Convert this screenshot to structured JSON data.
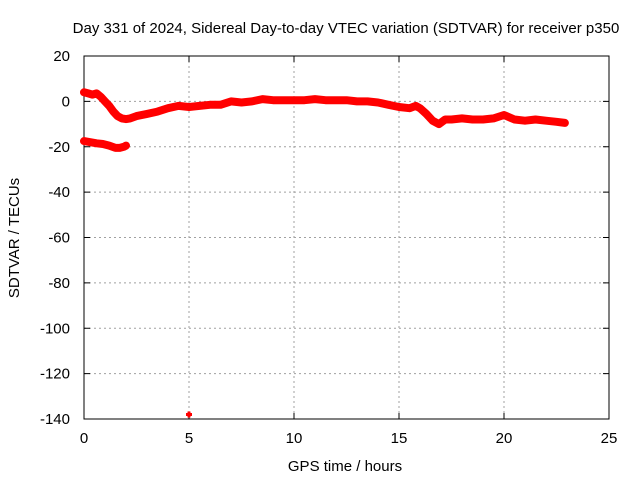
{
  "chart_data": {
    "type": "scatter",
    "title": "Day 331 of 2024, Sidereal Day-to-day VTEC variation (SDTVAR) for receiver p350",
    "xlabel": "GPS time / hours",
    "ylabel": "SDTVAR / TECUs",
    "xlim": [
      0,
      25
    ],
    "ylim": [
      -140,
      20
    ],
    "xticks": [
      0,
      5,
      10,
      15,
      20,
      25
    ],
    "yticks": [
      -140,
      -120,
      -100,
      -80,
      -60,
      -40,
      -20,
      0,
      20
    ],
    "grid": true,
    "marker_color": "#ff0000",
    "series": [
      {
        "name": "track-main",
        "x": [
          0.0,
          0.2,
          0.4,
          0.6,
          0.8,
          1.0,
          1.2,
          1.4,
          1.6,
          1.8,
          2.0,
          2.2,
          2.5,
          3.0,
          3.5,
          4.0,
          4.5,
          5.0,
          5.5,
          6.0,
          6.5,
          7.0,
          7.5,
          8.0,
          8.5,
          9.0,
          9.5,
          10.0,
          10.5,
          11.0,
          11.5,
          12.0,
          12.5,
          13.0,
          13.5,
          14.0,
          14.5,
          15.0,
          15.5,
          15.8,
          16.0,
          16.3,
          16.6,
          16.9,
          17.2,
          17.5,
          18.0,
          18.5,
          19.0,
          19.5,
          20.0,
          20.5,
          21.0,
          21.5,
          22.0,
          22.5,
          22.9
        ],
        "y": [
          4,
          3.5,
          3,
          3.5,
          2,
          0,
          -2,
          -4.5,
          -6.5,
          -7.5,
          -7.8,
          -7.5,
          -6.5,
          -5.5,
          -4.5,
          -3,
          -2,
          -2.5,
          -2,
          -1.5,
          -1.5,
          0,
          -0.5,
          0,
          1,
          0.5,
          0.5,
          0.5,
          0.5,
          1,
          0.5,
          0.5,
          0.5,
          0,
          0,
          -0.5,
          -1.5,
          -2.5,
          -3,
          -2,
          -3,
          -5.5,
          -8.5,
          -10,
          -8,
          -8,
          -7.5,
          -8,
          -8,
          -7.5,
          -6,
          -8,
          -8.5,
          -8,
          -8.5,
          -9,
          -9.5
        ]
      },
      {
        "name": "track-low",
        "x": [
          0.0,
          0.3,
          0.6,
          0.9,
          1.2,
          1.5,
          1.7,
          1.9,
          2.0
        ],
        "y": [
          -17.5,
          -18,
          -18.5,
          -18.8,
          -19.5,
          -20.5,
          -20.5,
          -20,
          -19.5
        ]
      },
      {
        "name": "outlier",
        "x": [
          5.0
        ],
        "y": [
          -138
        ]
      }
    ]
  }
}
